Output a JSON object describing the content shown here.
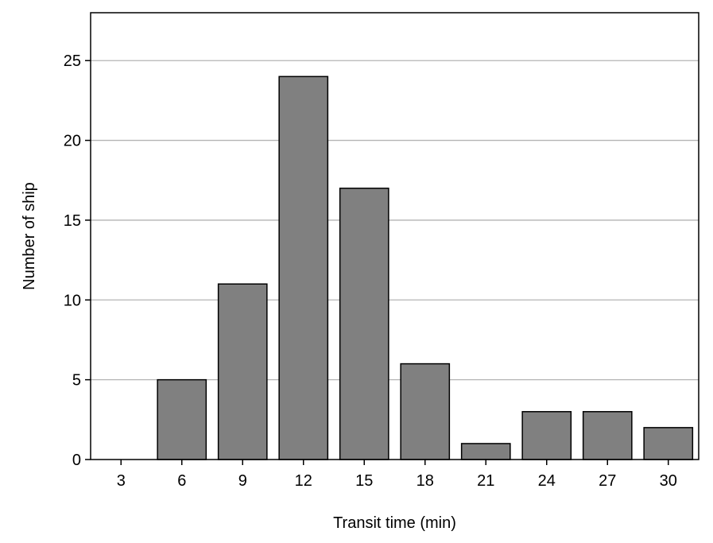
{
  "chart_data": {
    "type": "bar",
    "title": "",
    "xlabel": "Transit time (min)",
    "ylabel": "Number of ship",
    "categories": [
      "3",
      "6",
      "9",
      "12",
      "15",
      "18",
      "21",
      "24",
      "27",
      "30"
    ],
    "values": [
      0,
      5,
      11,
      24,
      17,
      6,
      1,
      3,
      3,
      2
    ],
    "yticks": [
      "0",
      "5",
      "10",
      "15",
      "20",
      "25"
    ],
    "ylim": [
      0,
      28
    ],
    "grid": "horizontal",
    "legend": "none",
    "bar_color": "#808080",
    "bar_edge_color": "#000000",
    "grid_color": "#b4b4b4"
  }
}
